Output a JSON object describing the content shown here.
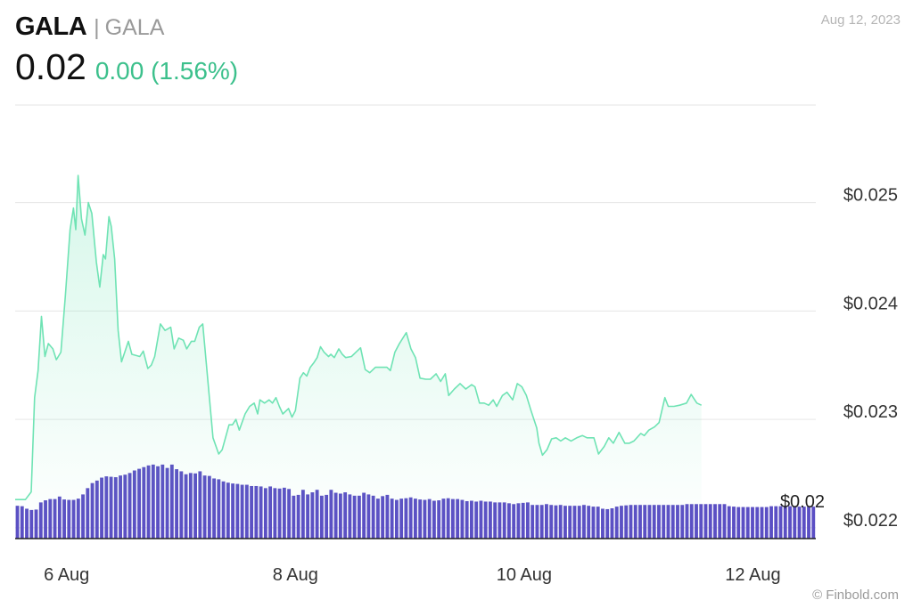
{
  "header": {
    "ticker": "GALA",
    "separator": "|",
    "name": "GALA",
    "price": "0.02",
    "change": "0.00 (1.56%)",
    "date": "Aug 12, 2023"
  },
  "footer": {
    "credit": "© Finbold.com"
  },
  "colors": {
    "line": "#6fe3b4",
    "bars": "#5b4fc4",
    "change": "#3cc08c"
  },
  "chart_data": {
    "type": "line",
    "ylabel": "",
    "xlabel": "",
    "y_ticks": [
      "$0.025",
      "$0.024",
      "$0.023",
      "$0.022"
    ],
    "y_tick_values": [
      0.025,
      0.024,
      0.023,
      0.022
    ],
    "x_ticks": [
      "6 Aug",
      "8 Aug",
      "10 Aug",
      "12 Aug"
    ],
    "x_tick_positions": [
      5.0,
      7.0,
      9.0,
      11.0
    ],
    "ylim": [
      0.0219,
      0.0259
    ],
    "xlim": [
      4.55,
      11.55
    ],
    "last_value_label": "$0.02",
    "grid": true,
    "series": [
      {
        "values": [
          [
            4.55,
            0.02226
          ],
          [
            4.64,
            0.02226
          ],
          [
            4.69,
            0.02233
          ],
          [
            4.72,
            0.0232
          ],
          [
            4.75,
            0.02345
          ],
          [
            4.78,
            0.02395
          ],
          [
            4.81,
            0.02358
          ],
          [
            4.84,
            0.0237
          ],
          [
            4.88,
            0.02365
          ],
          [
            4.91,
            0.02355
          ],
          [
            4.95,
            0.02362
          ],
          [
            4.99,
            0.02415
          ],
          [
            5.03,
            0.02475
          ],
          [
            5.06,
            0.02495
          ],
          [
            5.08,
            0.02475
          ],
          [
            5.1,
            0.02525
          ],
          [
            5.13,
            0.02485
          ],
          [
            5.16,
            0.0247
          ],
          [
            5.19,
            0.025
          ],
          [
            5.22,
            0.0249
          ],
          [
            5.26,
            0.02445
          ],
          [
            5.29,
            0.02422
          ],
          [
            5.32,
            0.02452
          ],
          [
            5.34,
            0.02448
          ],
          [
            5.37,
            0.02487
          ],
          [
            5.39,
            0.02478
          ],
          [
            5.42,
            0.02448
          ],
          [
            5.45,
            0.02382
          ],
          [
            5.48,
            0.02353
          ],
          [
            5.54,
            0.02372
          ],
          [
            5.57,
            0.0236
          ],
          [
            5.64,
            0.02358
          ],
          [
            5.67,
            0.02363
          ],
          [
            5.71,
            0.02347
          ],
          [
            5.74,
            0.0235
          ],
          [
            5.77,
            0.02358
          ],
          [
            5.82,
            0.02388
          ],
          [
            5.86,
            0.02382
          ],
          [
            5.91,
            0.02385
          ],
          [
            5.94,
            0.02365
          ],
          [
            5.98,
            0.02375
          ],
          [
            6.02,
            0.02373
          ],
          [
            6.05,
            0.02365
          ],
          [
            6.09,
            0.02372
          ],
          [
            6.12,
            0.02372
          ],
          [
            6.16,
            0.02385
          ],
          [
            6.19,
            0.02388
          ],
          [
            6.28,
            0.02283
          ],
          [
            6.33,
            0.02268
          ],
          [
            6.36,
            0.02272
          ],
          [
            6.42,
            0.02295
          ],
          [
            6.45,
            0.02295
          ],
          [
            6.48,
            0.023
          ],
          [
            6.51,
            0.0229
          ],
          [
            6.56,
            0.02305
          ],
          [
            6.6,
            0.02312
          ],
          [
            6.64,
            0.02315
          ],
          [
            6.67,
            0.02305
          ],
          [
            6.69,
            0.02318
          ],
          [
            6.73,
            0.02315
          ],
          [
            6.77,
            0.02318
          ],
          [
            6.8,
            0.02315
          ],
          [
            6.83,
            0.0232
          ],
          [
            6.86,
            0.02312
          ],
          [
            6.89,
            0.02305
          ],
          [
            6.94,
            0.0231
          ],
          [
            6.97,
            0.02302
          ],
          [
            7.0,
            0.02308
          ],
          [
            7.04,
            0.02338
          ],
          [
            7.07,
            0.02343
          ],
          [
            7.1,
            0.0234
          ],
          [
            7.13,
            0.02348
          ],
          [
            7.16,
            0.02352
          ],
          [
            7.19,
            0.02357
          ],
          [
            7.22,
            0.02367
          ],
          [
            7.25,
            0.02362
          ],
          [
            7.29,
            0.02358
          ],
          [
            7.31,
            0.0236
          ],
          [
            7.34,
            0.02357
          ],
          [
            7.38,
            0.02365
          ],
          [
            7.41,
            0.0236
          ],
          [
            7.44,
            0.02357
          ],
          [
            7.49,
            0.02358
          ],
          [
            7.53,
            0.02362
          ],
          [
            7.57,
            0.02366
          ],
          [
            7.61,
            0.02346
          ],
          [
            7.65,
            0.02343
          ],
          [
            7.7,
            0.02348
          ],
          [
            7.73,
            0.02348
          ],
          [
            7.76,
            0.02348
          ],
          [
            7.8,
            0.02348
          ],
          [
            7.83,
            0.02345
          ],
          [
            7.87,
            0.02362
          ],
          [
            7.91,
            0.0237
          ],
          [
            7.97,
            0.0238
          ],
          [
            8.01,
            0.02365
          ],
          [
            8.05,
            0.02357
          ],
          [
            8.09,
            0.02338
          ],
          [
            8.14,
            0.02337
          ],
          [
            8.18,
            0.02337
          ],
          [
            8.23,
            0.02342
          ],
          [
            8.27,
            0.02335
          ],
          [
            8.31,
            0.02342
          ],
          [
            8.34,
            0.02322
          ],
          [
            8.39,
            0.02328
          ],
          [
            8.44,
            0.02333
          ],
          [
            8.49,
            0.02328
          ],
          [
            8.54,
            0.02332
          ],
          [
            8.57,
            0.0233
          ],
          [
            8.61,
            0.02315
          ],
          [
            8.65,
            0.02315
          ],
          [
            8.69,
            0.02313
          ],
          [
            8.73,
            0.02318
          ],
          [
            8.76,
            0.02312
          ],
          [
            8.81,
            0.02322
          ],
          [
            8.85,
            0.02325
          ],
          [
            8.9,
            0.02318
          ],
          [
            8.94,
            0.02333
          ],
          [
            8.98,
            0.0233
          ],
          [
            9.02,
            0.02322
          ],
          [
            9.06,
            0.02308
          ],
          [
            9.11,
            0.02292
          ],
          [
            9.13,
            0.02278
          ],
          [
            9.16,
            0.02267
          ],
          [
            9.2,
            0.02272
          ],
          [
            9.24,
            0.02282
          ],
          [
            9.28,
            0.02283
          ],
          [
            9.32,
            0.0228
          ],
          [
            9.36,
            0.02283
          ],
          [
            9.41,
            0.0228
          ],
          [
            9.46,
            0.02283
          ],
          [
            9.51,
            0.02285
          ],
          [
            9.55,
            0.02283
          ],
          [
            9.61,
            0.02283
          ],
          [
            9.65,
            0.02268
          ],
          [
            9.7,
            0.02275
          ],
          [
            9.74,
            0.02283
          ],
          [
            9.78,
            0.02278
          ],
          [
            9.83,
            0.02288
          ],
          [
            9.88,
            0.02278
          ],
          [
            9.92,
            0.02278
          ],
          [
            9.96,
            0.0228
          ],
          [
            10.02,
            0.02287
          ],
          [
            10.05,
            0.02285
          ],
          [
            10.09,
            0.0229
          ],
          [
            10.14,
            0.02293
          ],
          [
            10.18,
            0.02297
          ],
          [
            10.23,
            0.0232
          ],
          [
            10.26,
            0.02312
          ],
          [
            10.31,
            0.02312
          ],
          [
            10.36,
            0.02313
          ],
          [
            10.42,
            0.02315
          ],
          [
            10.46,
            0.02323
          ],
          [
            10.51,
            0.02315
          ],
          [
            10.55,
            0.02313
          ]
        ]
      }
    ],
    "volume": {
      "values": [
        0.78,
        0.77,
        0.71,
        0.68,
        0.69,
        0.86,
        0.91,
        0.94,
        0.94,
        1.0,
        0.93,
        0.92,
        0.92,
        0.95,
        1.05,
        1.2,
        1.32,
        1.38,
        1.45,
        1.48,
        1.47,
        1.46,
        1.5,
        1.52,
        1.56,
        1.62,
        1.66,
        1.7,
        1.74,
        1.76,
        1.72,
        1.76,
        1.68,
        1.76,
        1.65,
        1.6,
        1.53,
        1.56,
        1.55,
        1.6,
        1.5,
        1.49,
        1.43,
        1.41,
        1.36,
        1.33,
        1.31,
        1.3,
        1.28,
        1.28,
        1.25,
        1.25,
        1.24,
        1.2,
        1.24,
        1.2,
        1.19,
        1.21,
        1.18,
        1.02,
        1.04,
        1.16,
        1.05,
        1.1,
        1.16,
        1.02,
        1.04,
        1.16,
        1.09,
        1.07,
        1.1,
        1.05,
        1.02,
        1.02,
        1.09,
        1.05,
        1.02,
        0.95,
        1.01,
        1.04,
        0.95,
        0.92,
        0.95,
        0.96,
        0.98,
        0.95,
        0.93,
        0.92,
        0.94,
        0.9,
        0.91,
        0.95,
        0.96,
        0.94,
        0.94,
        0.92,
        0.89,
        0.9,
        0.88,
        0.9,
        0.88,
        0.88,
        0.86,
        0.86,
        0.86,
        0.84,
        0.82,
        0.84,
        0.85,
        0.86,
        0.8,
        0.8,
        0.8,
        0.82,
        0.8,
        0.79,
        0.8,
        0.78,
        0.78,
        0.78,
        0.78,
        0.8,
        0.78,
        0.76,
        0.76,
        0.71,
        0.7,
        0.72,
        0.76,
        0.78,
        0.79,
        0.8,
        0.8,
        0.8,
        0.8,
        0.8,
        0.8,
        0.8,
        0.8,
        0.8,
        0.8,
        0.8,
        0.8,
        0.82,
        0.82,
        0.82,
        0.82,
        0.82,
        0.82,
        0.82,
        0.82,
        0.82,
        0.77,
        0.76,
        0.75,
        0.75,
        0.75,
        0.75,
        0.75,
        0.75,
        0.75,
        0.77,
        0.77,
        0.77,
        0.77,
        0.77,
        0.76,
        0.76,
        0.76,
        0.76,
        0.76
      ]
    }
  }
}
